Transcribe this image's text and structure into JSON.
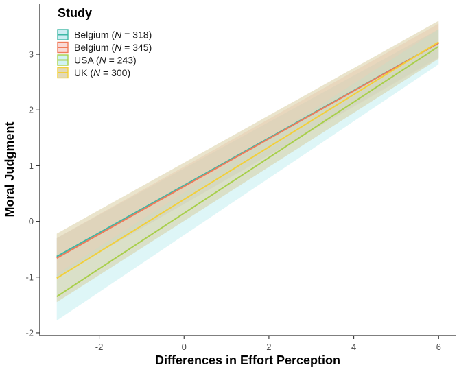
{
  "chart_data": {
    "type": "line",
    "title": "",
    "xlabel": "Differences in Effort Perception",
    "ylabel": "Moral Judgment",
    "xlim": [
      -3.4,
      6.4
    ],
    "ylim": [
      -2.05,
      3.9
    ],
    "xticks": [
      -2,
      0,
      2,
      4,
      6
    ],
    "yticks": [
      -2,
      -1,
      0,
      1,
      2,
      3
    ],
    "grid": false,
    "legend": {
      "title": "Study",
      "placement": "top-left",
      "entries": [
        {
          "prefix": "Belgium (",
          "italic": "N",
          "suffix": " = 318)"
        },
        {
          "prefix": "Belgium (",
          "italic": "N",
          "suffix": " = 345)"
        },
        {
          "prefix": "USA (",
          "italic": "N",
          "suffix": " = 243)"
        },
        {
          "prefix": "UK (",
          "italic": "N",
          "suffix": " = 300)"
        }
      ]
    },
    "series": [
      {
        "name": "Belgium (N = 318)",
        "color": "#3fb8a6",
        "band_color": "#b8e6ee",
        "x": [
          -3,
          6
        ],
        "y": [
          -0.63,
          3.2
        ],
        "lower": [
          -1.0,
          2.95
        ],
        "upper": [
          -0.3,
          3.45
        ]
      },
      {
        "name": "Belgium (N = 345)",
        "color": "#f07a5a",
        "band_color": "#f6c9c4",
        "x": [
          -3,
          6
        ],
        "y": [
          -0.66,
          3.2
        ],
        "lower": [
          -1.0,
          2.93
        ],
        "upper": [
          -0.3,
          3.55
        ]
      },
      {
        "name": "USA (N = 243)",
        "color": "#a8cf4a",
        "band_color": "#bdeef0",
        "x": [
          -3,
          6
        ],
        "y": [
          -1.35,
          3.14
        ],
        "lower": [
          -1.78,
          2.82
        ],
        "upper": [
          -0.95,
          3.45
        ]
      },
      {
        "name": "UK (N = 300)",
        "color": "#f2cf3a",
        "band_color": "#d6c99a",
        "x": [
          -3,
          6
        ],
        "y": [
          -1.02,
          3.22
        ],
        "lower": [
          -1.45,
          2.92
        ],
        "upper": [
          -0.22,
          3.6
        ]
      }
    ]
  }
}
